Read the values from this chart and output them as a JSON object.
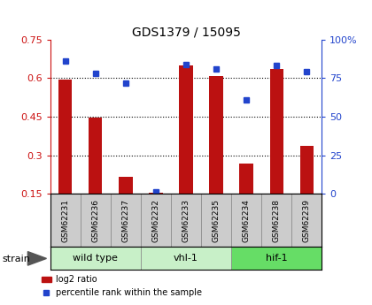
{
  "title": "GDS1379 / 15095",
  "samples": [
    "GSM62231",
    "GSM62236",
    "GSM62237",
    "GSM62232",
    "GSM62233",
    "GSM62235",
    "GSM62234",
    "GSM62238",
    "GSM62239"
  ],
  "log2_ratio": [
    0.595,
    0.447,
    0.215,
    0.152,
    0.648,
    0.608,
    0.268,
    0.635,
    0.335
  ],
  "percentile_rank": [
    86,
    78,
    72,
    1,
    84,
    81,
    61,
    83,
    79
  ],
  "groups": [
    {
      "label": "wild type",
      "start": 0,
      "end": 3,
      "color": "#c8f0c8"
    },
    {
      "label": "vhl-1",
      "start": 3,
      "end": 6,
      "color": "#c8f0c8"
    },
    {
      "label": "hif-1",
      "start": 6,
      "end": 9,
      "color": "#66dd66"
    }
  ],
  "group_colors": [
    "#c8f0c8",
    "#c8f0c8",
    "#66dd66"
  ],
  "ylim_left": [
    0.15,
    0.75
  ],
  "ylim_right": [
    0,
    100
  ],
  "yticks_left": [
    0.15,
    0.3,
    0.45,
    0.6,
    0.75
  ],
  "yticks_right": [
    0,
    25,
    50,
    75,
    100
  ],
  "bar_color": "#bb1111",
  "dot_color": "#2244cc",
  "bar_width": 0.45,
  "legend_labels": [
    "log2 ratio",
    "percentile rank within the sample"
  ],
  "label_color_left": "#cc1111",
  "label_color_right": "#2244cc",
  "strain_label": "strain"
}
